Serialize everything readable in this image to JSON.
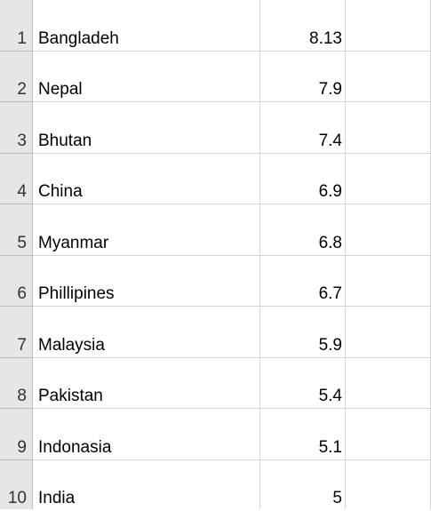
{
  "rows": [
    {
      "num": "1",
      "country": "Bangladeh",
      "value": "8.13"
    },
    {
      "num": "2",
      "country": "Nepal",
      "value": "7.9"
    },
    {
      "num": "3",
      "country": "Bhutan",
      "value": "7.4"
    },
    {
      "num": "4",
      "country": "China",
      "value": "6.9"
    },
    {
      "num": "5",
      "country": "Myanmar",
      "value": "6.8"
    },
    {
      "num": "6",
      "country": "Phillipines",
      "value": "6.7"
    },
    {
      "num": "7",
      "country": "Malaysia",
      "value": "5.9"
    },
    {
      "num": "8",
      "country": "Pakistan",
      "value": "5.4"
    },
    {
      "num": "9",
      "country": "Indonasia",
      "value": "5.1"
    },
    {
      "num": "10",
      "country": "India",
      "value": "5"
    }
  ]
}
